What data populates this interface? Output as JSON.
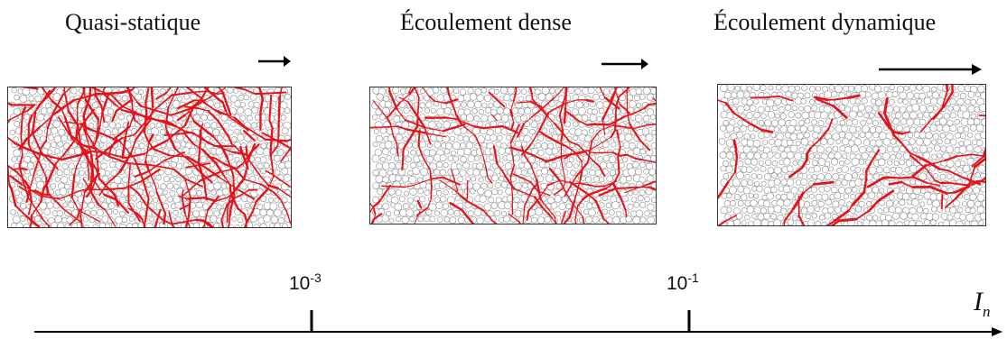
{
  "regimes": [
    {
      "title": "Quasi-statique",
      "arrow_relative_length": 0.3,
      "chain_density": "high"
    },
    {
      "title": "Écoulement dense",
      "arrow_relative_length": 0.5,
      "chain_density": "medium"
    },
    {
      "title": "Écoulement dynamique",
      "arrow_relative_length": 1.0,
      "chain_density": "low"
    }
  ],
  "axis": {
    "label_base": "I",
    "label_sub": "n",
    "ticks": [
      {
        "base": "10",
        "exp": "-3"
      },
      {
        "base": "10",
        "exp": "-1"
      }
    ]
  },
  "colors": {
    "force_chain": "#e3131b",
    "particle_outline": "#8a8a8a",
    "axis": "#000000"
  }
}
